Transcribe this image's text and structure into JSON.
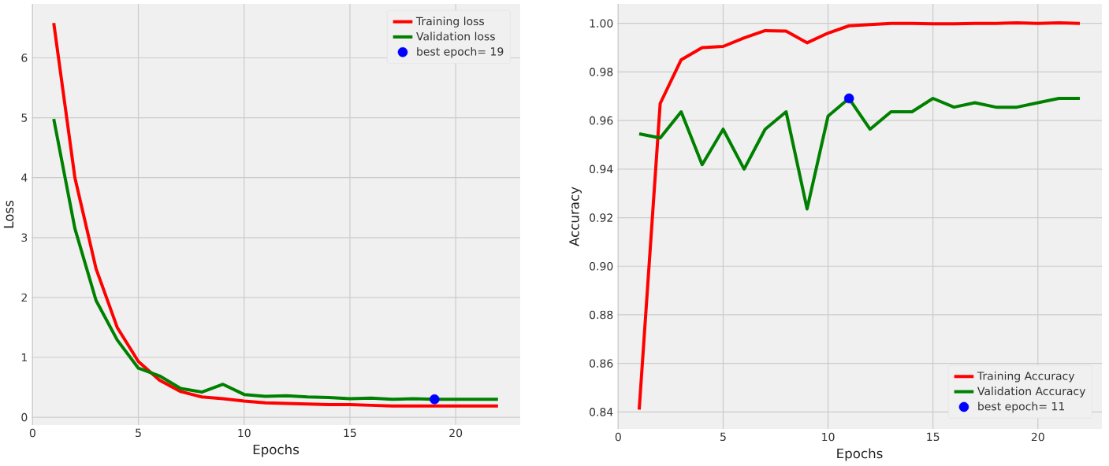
{
  "chart_data": [
    {
      "type": "line",
      "x": [
        1,
        2,
        3,
        4,
        5,
        6,
        7,
        8,
        9,
        10,
        11,
        12,
        13,
        14,
        15,
        16,
        17,
        18,
        19,
        20,
        21,
        22
      ],
      "xlabel": "Epochs",
      "ylabel": "Loss",
      "xlim": [
        -0.05,
        23.05
      ],
      "ylim": [
        -0.13,
        6.9
      ],
      "xticks": [
        0,
        5,
        10,
        15,
        20
      ],
      "yticks": [
        0,
        1,
        2,
        3,
        4,
        5,
        6
      ],
      "grid": true,
      "legend": "top right",
      "series": [
        {
          "name": "Training loss",
          "color": "#ff0000",
          "values": [
            6.58,
            4.0,
            2.48,
            1.5,
            0.93,
            0.62,
            0.43,
            0.34,
            0.31,
            0.27,
            0.24,
            0.23,
            0.22,
            0.21,
            0.21,
            0.2,
            0.19,
            0.19,
            0.19,
            0.19,
            0.19,
            0.19
          ]
        },
        {
          "name": "Validation loss",
          "color": "#008000",
          "values": [
            4.98,
            3.15,
            1.95,
            1.29,
            0.82,
            0.69,
            0.48,
            0.42,
            0.55,
            0.38,
            0.35,
            0.36,
            0.34,
            0.33,
            0.31,
            0.32,
            0.3,
            0.31,
            0.3,
            0.3,
            0.3,
            0.3
          ]
        },
        {
          "name": "best epoch= 19",
          "type": "scatter",
          "marker": "circle",
          "color": "#0000ff",
          "x": [
            19
          ],
          "values": [
            0.3
          ]
        }
      ]
    },
    {
      "type": "line",
      "x": [
        1,
        2,
        3,
        4,
        5,
        6,
        7,
        8,
        9,
        10,
        11,
        12,
        13,
        14,
        15,
        16,
        17,
        18,
        19,
        20,
        21,
        22
      ],
      "xlabel": "Epochs",
      "ylabel": "Accuracy",
      "xlim": [
        -0.05,
        23.05
      ],
      "ylim": [
        0.833,
        1.008
      ],
      "xticks": [
        0,
        5,
        10,
        15,
        20
      ],
      "yticks": [
        0.84,
        0.86,
        0.88,
        {
          "value": 0.9,
          "label": "0.90"
        },
        0.92,
        0.94,
        0.96,
        0.98,
        {
          "value": 1.0,
          "label": "1.00"
        }
      ],
      "grid": true,
      "legend": "bottom right",
      "series": [
        {
          "name": "Training Accuracy",
          "color": "#ff0000",
          "values": [
            0.841,
            0.967,
            0.985,
            0.99,
            0.9905,
            0.994,
            0.997,
            0.9968,
            0.992,
            0.996,
            0.999,
            0.9995,
            1.0,
            1.0,
            0.9998,
            0.9998,
            1.0,
            1.0,
            1.0002,
            1.0,
            1.0002,
            1.0
          ]
        },
        {
          "name": "Validation Accuracy",
          "color": "#008000",
          "values": [
            0.9545,
            0.9528,
            0.9636,
            0.9418,
            0.9564,
            0.94,
            0.9564,
            0.9636,
            0.9236,
            0.9618,
            0.9691,
            0.9564,
            0.9636,
            0.9636,
            0.9691,
            0.9655,
            0.9673,
            0.9655,
            0.9655,
            0.9673,
            0.9691,
            0.9691
          ]
        },
        {
          "name": "best epoch= 11",
          "type": "scatter",
          "marker": "circle",
          "color": "#0000ff",
          "x": [
            11
          ],
          "values": [
            0.9691
          ]
        }
      ]
    }
  ]
}
